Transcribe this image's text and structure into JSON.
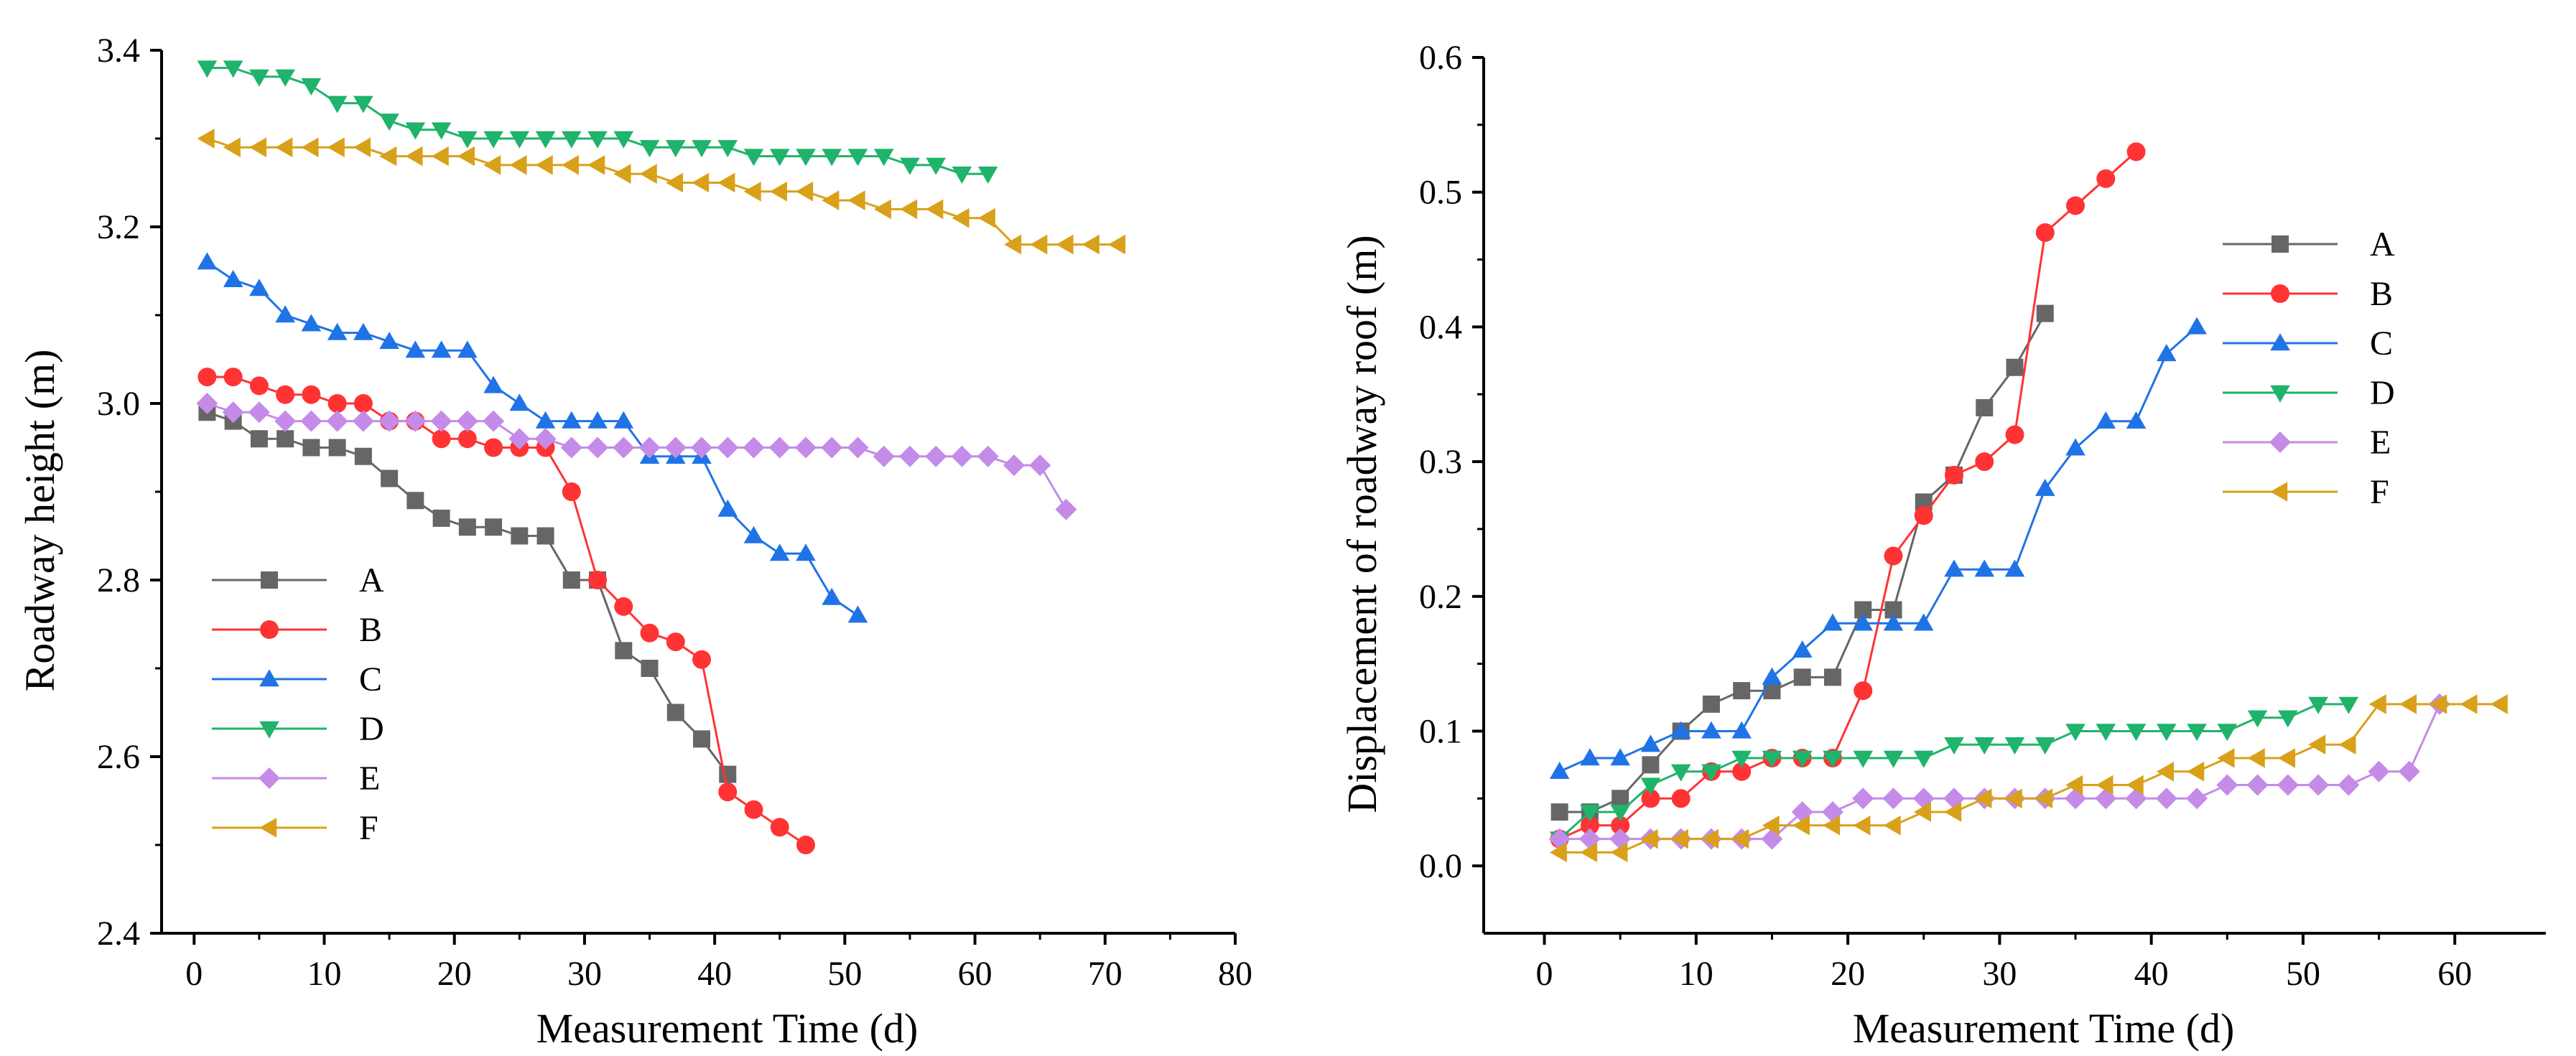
{
  "colors": {
    "A": "#666666",
    "B": "#ff3333",
    "C": "#1f73e6",
    "D": "#1fb36b",
    "E": "#c48be8",
    "F": "#d9a01a"
  },
  "chart_data": [
    {
      "type": "line",
      "title": "",
      "xlabel": "Measurement Time (d)",
      "ylabel": "Roadway height (m)",
      "xlim": [
        -2.5,
        80
      ],
      "ylim": [
        2.4,
        3.4
      ],
      "x_ticks": [
        "0",
        "10",
        "20",
        "30",
        "40",
        "50",
        "60",
        "70",
        "80"
      ],
      "x_tick_values": [
        0,
        10,
        20,
        30,
        40,
        50,
        60,
        70,
        80
      ],
      "y_ticks": [
        "2.4",
        "2.6",
        "2.8",
        "3.0",
        "3.2",
        "3.4"
      ],
      "y_tick_values": [
        2.4,
        2.6,
        2.8,
        3.0,
        3.2,
        3.4
      ],
      "grid": false,
      "legend_position": "bottom-left",
      "series": [
        {
          "name": "A",
          "marker": "square",
          "x": [
            1,
            3,
            5,
            7,
            9,
            11,
            13,
            15,
            17,
            19,
            21,
            23,
            25,
            27,
            29,
            31,
            33,
            35,
            37,
            39,
            41
          ],
          "y": [
            2.99,
            2.98,
            2.96,
            2.96,
            2.95,
            2.95,
            2.94,
            2.915,
            2.89,
            2.87,
            2.86,
            2.86,
            2.85,
            2.85,
            2.8,
            2.8,
            2.72,
            2.7,
            2.65,
            2.62,
            2.58
          ]
        },
        {
          "name": "B",
          "marker": "circle",
          "x": [
            1,
            3,
            5,
            7,
            9,
            11,
            13,
            15,
            17,
            19,
            21,
            23,
            25,
            27,
            29,
            31,
            33,
            35,
            37,
            39,
            41,
            43,
            45,
            47
          ],
          "y": [
            3.03,
            3.03,
            3.02,
            3.01,
            3.01,
            3.0,
            3.0,
            2.98,
            2.98,
            2.96,
            2.96,
            2.95,
            2.95,
            2.95,
            2.9,
            2.8,
            2.77,
            2.74,
            2.73,
            2.71,
            2.56,
            2.54,
            2.52,
            2.5
          ]
        },
        {
          "name": "C",
          "marker": "triangle-up",
          "x": [
            1,
            3,
            5,
            7,
            9,
            11,
            13,
            15,
            17,
            19,
            21,
            23,
            25,
            27,
            29,
            31,
            33,
            35,
            37,
            39,
            41,
            43,
            45,
            47,
            49,
            51
          ],
          "y": [
            3.16,
            3.14,
            3.13,
            3.1,
            3.09,
            3.08,
            3.08,
            3.07,
            3.06,
            3.06,
            3.06,
            3.02,
            3.0,
            2.98,
            2.98,
            2.98,
            2.98,
            2.94,
            2.94,
            2.94,
            2.88,
            2.85,
            2.83,
            2.83,
            2.78,
            2.76
          ]
        },
        {
          "name": "D",
          "marker": "triangle-down",
          "x": [
            1,
            3,
            5,
            7,
            9,
            11,
            13,
            15,
            17,
            19,
            21,
            23,
            25,
            27,
            29,
            31,
            33,
            35,
            37,
            39,
            41,
            43,
            45,
            47,
            49,
            51,
            53,
            55,
            57,
            59,
            61
          ],
          "y": [
            3.38,
            3.38,
            3.37,
            3.37,
            3.36,
            3.34,
            3.34,
            3.32,
            3.31,
            3.31,
            3.3,
            3.3,
            3.3,
            3.3,
            3.3,
            3.3,
            3.3,
            3.29,
            3.29,
            3.29,
            3.29,
            3.28,
            3.28,
            3.28,
            3.28,
            3.28,
            3.28,
            3.27,
            3.27,
            3.26,
            3.26
          ]
        },
        {
          "name": "E",
          "marker": "diamond",
          "x": [
            1,
            3,
            5,
            7,
            9,
            11,
            13,
            15,
            17,
            19,
            21,
            23,
            25,
            27,
            29,
            31,
            33,
            35,
            37,
            39,
            41,
            43,
            45,
            47,
            49,
            51,
            53,
            55,
            57,
            59,
            61,
            63,
            65,
            67
          ],
          "y": [
            3.0,
            2.99,
            2.99,
            2.98,
            2.98,
            2.98,
            2.98,
            2.98,
            2.98,
            2.98,
            2.98,
            2.98,
            2.96,
            2.96,
            2.95,
            2.95,
            2.95,
            2.95,
            2.95,
            2.95,
            2.95,
            2.95,
            2.95,
            2.95,
            2.95,
            2.95,
            2.94,
            2.94,
            2.94,
            2.94,
            2.94,
            2.93,
            2.93,
            2.88
          ]
        },
        {
          "name": "F",
          "marker": "triangle-left",
          "x": [
            1,
            3,
            5,
            7,
            9,
            11,
            13,
            15,
            17,
            19,
            21,
            23,
            25,
            27,
            29,
            31,
            33,
            35,
            37,
            39,
            41,
            43,
            45,
            47,
            49,
            51,
            53,
            55,
            57,
            59,
            61,
            63,
            65,
            67,
            69,
            71
          ],
          "y": [
            3.3,
            3.29,
            3.29,
            3.29,
            3.29,
            3.29,
            3.29,
            3.28,
            3.28,
            3.28,
            3.28,
            3.27,
            3.27,
            3.27,
            3.27,
            3.27,
            3.26,
            3.26,
            3.25,
            3.25,
            3.25,
            3.24,
            3.24,
            3.24,
            3.23,
            3.23,
            3.22,
            3.22,
            3.22,
            3.21,
            3.21,
            3.18,
            3.18,
            3.18,
            3.18,
            3.18
          ]
        }
      ]
    },
    {
      "type": "line",
      "title": "",
      "xlabel": "Measurement Time (d)",
      "ylabel": "Displacement of roadway roof (m)",
      "xlim": [
        -4,
        66
      ],
      "ylim": [
        -0.05,
        0.6
      ],
      "x_ticks": [
        "0",
        "10",
        "20",
        "30",
        "40",
        "50",
        "60"
      ],
      "x_tick_values": [
        0,
        10,
        20,
        30,
        40,
        50,
        60
      ],
      "y_ticks": [
        "0.0",
        "0.1",
        "0.2",
        "0.3",
        "0.4",
        "0.5",
        "0.6"
      ],
      "y_tick_values": [
        0.0,
        0.1,
        0.2,
        0.3,
        0.4,
        0.5,
        0.6
      ],
      "grid": false,
      "legend_position": "top-right",
      "series": [
        {
          "name": "A",
          "marker": "square",
          "x": [
            1,
            3,
            5,
            7,
            9,
            11,
            13,
            15,
            17,
            19,
            21,
            23,
            25,
            27,
            29,
            31,
            33
          ],
          "y": [
            0.04,
            0.04,
            0.05,
            0.075,
            0.1,
            0.12,
            0.13,
            0.13,
            0.14,
            0.14,
            0.19,
            0.19,
            0.27,
            0.29,
            0.34,
            0.37,
            0.41
          ]
        },
        {
          "name": "B",
          "marker": "circle",
          "x": [
            1,
            3,
            5,
            7,
            9,
            11,
            13,
            15,
            17,
            19,
            21,
            23,
            25,
            27,
            29,
            31,
            33,
            35,
            37,
            39
          ],
          "y": [
            0.02,
            0.03,
            0.03,
            0.05,
            0.05,
            0.07,
            0.07,
            0.08,
            0.08,
            0.08,
            0.13,
            0.23,
            0.26,
            0.29,
            0.3,
            0.32,
            0.47,
            0.49,
            0.51,
            0.53
          ]
        },
        {
          "name": "C",
          "marker": "triangle-up",
          "x": [
            1,
            3,
            5,
            7,
            9,
            11,
            13,
            15,
            17,
            19,
            21,
            23,
            25,
            27,
            29,
            31,
            33,
            35,
            37,
            39,
            41,
            43
          ],
          "y": [
            0.07,
            0.08,
            0.08,
            0.09,
            0.1,
            0.1,
            0.1,
            0.14,
            0.16,
            0.18,
            0.18,
            0.18,
            0.18,
            0.22,
            0.22,
            0.22,
            0.28,
            0.31,
            0.33,
            0.33,
            0.38,
            0.4
          ]
        },
        {
          "name": "D",
          "marker": "triangle-down",
          "x": [
            1,
            3,
            5,
            7,
            9,
            11,
            13,
            15,
            17,
            19,
            21,
            23,
            25,
            27,
            29,
            31,
            33,
            35,
            37,
            39,
            41,
            43,
            45,
            47,
            49,
            51,
            53
          ],
          "y": [
            0.02,
            0.04,
            0.04,
            0.06,
            0.07,
            0.07,
            0.08,
            0.08,
            0.08,
            0.08,
            0.08,
            0.08,
            0.08,
            0.09,
            0.09,
            0.09,
            0.09,
            0.1,
            0.1,
            0.1,
            0.1,
            0.1,
            0.1,
            0.11,
            0.11,
            0.12,
            0.12
          ]
        },
        {
          "name": "E",
          "marker": "diamond",
          "x": [
            1,
            3,
            5,
            7,
            9,
            11,
            13,
            15,
            17,
            19,
            21,
            23,
            25,
            27,
            29,
            31,
            33,
            35,
            37,
            39,
            41,
            43,
            45,
            47,
            49,
            51,
            53,
            55,
            57,
            59
          ],
          "y": [
            0.02,
            0.02,
            0.02,
            0.02,
            0.02,
            0.02,
            0.02,
            0.02,
            0.04,
            0.04,
            0.05,
            0.05,
            0.05,
            0.05,
            0.05,
            0.05,
            0.05,
            0.05,
            0.05,
            0.05,
            0.05,
            0.05,
            0.06,
            0.06,
            0.06,
            0.06,
            0.06,
            0.07,
            0.07,
            0.12
          ]
        },
        {
          "name": "F",
          "marker": "triangle-left",
          "x": [
            1,
            3,
            5,
            7,
            9,
            11,
            13,
            15,
            17,
            19,
            21,
            23,
            25,
            27,
            29,
            31,
            33,
            35,
            37,
            39,
            41,
            43,
            45,
            47,
            49,
            51,
            53,
            55,
            57,
            59,
            61,
            63
          ],
          "y": [
            0.01,
            0.01,
            0.01,
            0.02,
            0.02,
            0.02,
            0.02,
            0.03,
            0.03,
            0.03,
            0.03,
            0.03,
            0.04,
            0.04,
            0.05,
            0.05,
            0.05,
            0.06,
            0.06,
            0.06,
            0.07,
            0.07,
            0.08,
            0.08,
            0.08,
            0.09,
            0.09,
            0.12,
            0.12,
            0.12,
            0.12,
            0.12
          ]
        }
      ]
    }
  ]
}
